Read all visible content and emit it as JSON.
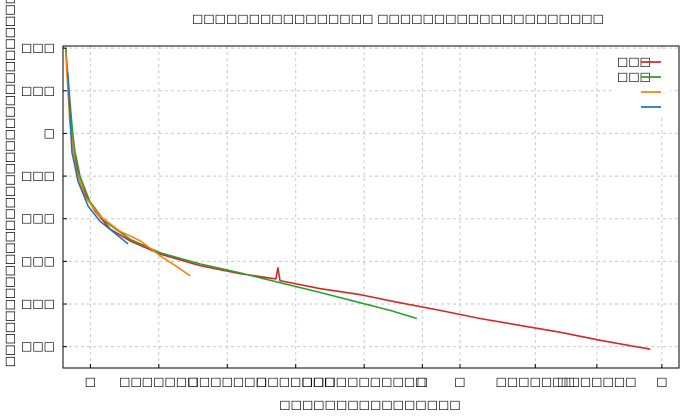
{
  "chart_data": {
    "type": "line",
    "title": "□□□□□□□□□□□□□□□□ □□□□□□□□□□□□□□□□□□□□",
    "x_label": "□□□□□□□□□□□□□□□□",
    "y_label": "□□□□□□□□□□□□□□□□□□□□□□□□□□□□□□□□□",
    "xlim": [
      0,
      9
    ],
    "ylim": [
      0,
      7.55
    ],
    "xticks": [
      {
        "value": 0.4,
        "label": "□"
      },
      {
        "value": 1.4,
        "label": "□□□□□□□"
      },
      {
        "value": 2.4,
        "label": "□□□□□□□"
      },
      {
        "value": 3.4,
        "label": "□□□□□□□"
      },
      {
        "value": 4.4,
        "label": "□□□□□□□□□□□"
      },
      {
        "value": 5.25,
        "label": "□"
      },
      {
        "value": 5.8,
        "label": "□"
      },
      {
        "value": 6.9,
        "label": "□□□□□□□"
      },
      {
        "value": 7.8,
        "label": "□□□□□□□"
      },
      {
        "value": 8.75,
        "label": "□"
      }
    ],
    "yticks": [
      {
        "value": 0.5,
        "label": "□□□"
      },
      {
        "value": 1.5,
        "label": "□□□"
      },
      {
        "value": 2.5,
        "label": "□□□"
      },
      {
        "value": 3.5,
        "label": "□□□"
      },
      {
        "value": 4.5,
        "label": "□□□"
      },
      {
        "value": 5.5,
        "label": "□"
      },
      {
        "value": 6.5,
        "label": "□□□"
      },
      {
        "value": 7.5,
        "label": "□□□"
      }
    ],
    "grid": true,
    "legend": "upper right",
    "series": [
      {
        "name": "□□□",
        "color": "#d62728",
        "x": [
          0.04,
          0.09,
          0.13,
          0.19,
          0.25,
          0.34,
          0.47,
          0.69,
          0.98,
          1.42,
          2.0,
          2.59,
          3.11,
          3.14,
          3.17,
          3.76,
          4.34,
          4.92,
          5.51,
          6.09,
          6.68,
          7.26,
          7.85,
          8.58
        ],
        "values": [
          7.49,
          6.47,
          5.65,
          4.84,
          4.37,
          4.02,
          3.67,
          3.26,
          2.98,
          2.67,
          2.4,
          2.21,
          2.09,
          2.35,
          2.05,
          1.86,
          1.72,
          1.53,
          1.35,
          1.16,
          1.0,
          0.84,
          0.65,
          0.44
        ]
      },
      {
        "name": "□□□",
        "color": "#2ca02c",
        "x": [
          0.04,
          0.1,
          0.16,
          0.25,
          0.39,
          0.61,
          0.98,
          1.42,
          2.0,
          2.59,
          3.17,
          3.76,
          4.34,
          4.78,
          5.17
        ],
        "values": [
          7.49,
          6.23,
          5.19,
          4.49,
          3.91,
          3.44,
          3.02,
          2.7,
          2.44,
          2.23,
          2.0,
          1.77,
          1.53,
          1.35,
          1.16
        ]
      },
      {
        "color": "#ff7f0e",
        "x": [
          0.04,
          0.1,
          0.18,
          0.32,
          0.54,
          0.83,
          1.13,
          1.42,
          1.64,
          1.86
        ],
        "values": [
          7.4,
          5.77,
          4.72,
          4.02,
          3.56,
          3.21,
          2.98,
          2.63,
          2.4,
          2.16
        ]
      },
      {
        "color": "#1f77b4",
        "x": [
          0.07,
          0.13,
          0.22,
          0.37,
          0.54,
          0.76,
          0.95
        ],
        "values": [
          6.93,
          5.07,
          4.37,
          3.79,
          3.44,
          3.16,
          2.91
        ]
      }
    ]
  }
}
